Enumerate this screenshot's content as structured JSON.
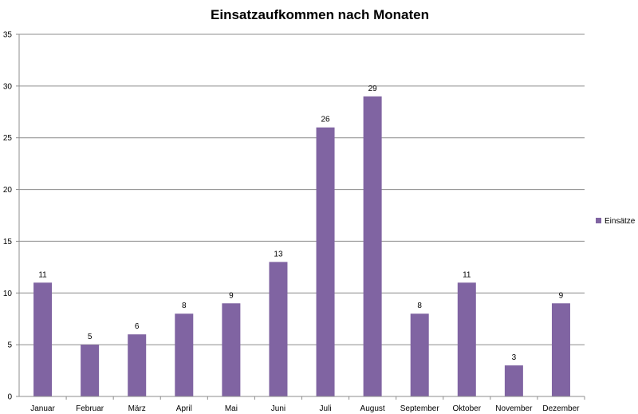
{
  "chart_data": {
    "type": "bar",
    "title": "Einsatzaufkommen nach Monaten",
    "xlabel": "",
    "ylabel": "",
    "categories": [
      "Januar",
      "Februar",
      "März",
      "April",
      "Mai",
      "Juni",
      "Juli",
      "August",
      "September",
      "Oktober",
      "November",
      "Dezember"
    ],
    "series": [
      {
        "name": "Einsätze",
        "values": [
          11,
          5,
          6,
          8,
          9,
          13,
          26,
          29,
          8,
          11,
          3,
          9
        ],
        "color": "#8064a2"
      }
    ],
    "ylim": [
      0,
      35
    ],
    "yticks": [
      0,
      5,
      10,
      15,
      20,
      25,
      30,
      35
    ],
    "grid": true,
    "legend_position": "right",
    "data_labels": true
  }
}
